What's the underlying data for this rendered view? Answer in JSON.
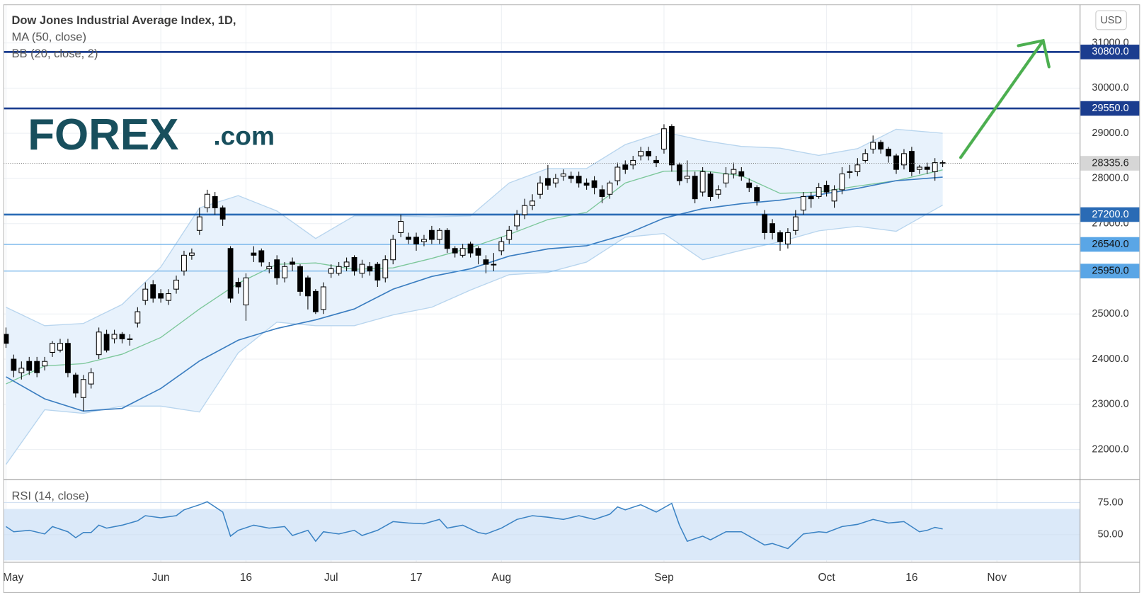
{
  "chart_data": [
    {
      "type": "candlestick",
      "title": "Dow Jones Industrial Average Index, 1D,",
      "indicators": [
        "MA (50, close)",
        "BB (20, close, 2)"
      ],
      "currency": "USD",
      "open": [
        24550,
        24000,
        23700,
        23950,
        23950,
        23850,
        24150,
        24200,
        24350,
        23650,
        23150,
        23450,
        24100,
        24550,
        24450,
        24550,
        24450,
        24800,
        25300,
        25650,
        25450,
        25300,
        25550,
        25950,
        26300,
        26850,
        27350,
        27600,
        27350,
        26450,
        25700,
        25200,
        26350,
        26400,
        26000,
        26200,
        25800,
        26150,
        26050,
        25800,
        25500,
        25100,
        25900,
        25900,
        26050,
        26250,
        25900,
        26050,
        26100,
        25800,
        26200,
        26800,
        26700,
        26700,
        26600,
        26850,
        26650,
        26850,
        26450,
        26300,
        26550,
        26450,
        26200,
        26100,
        26400,
        26650,
        26950,
        27200,
        27400,
        27650,
        28000,
        27900,
        28050,
        28050,
        28050,
        27900,
        27950,
        27750,
        27650,
        27950,
        28300,
        28300,
        28500,
        28600,
        28400,
        28650,
        29150,
        28300,
        28000,
        28050,
        27700,
        28100,
        27650,
        27900,
        28100,
        28150,
        27900,
        27800,
        27200,
        27000,
        26800,
        26550,
        26850,
        27300,
        27600,
        27600,
        27850,
        27500,
        27750,
        28150,
        28150,
        28400,
        28650,
        28800,
        28650,
        28500,
        28300,
        28600,
        28200,
        28250,
        28150,
        28350
      ],
      "high": [
        24700,
        24100,
        23950,
        24050,
        24050,
        24050,
        24400,
        24450,
        24450,
        23700,
        23650,
        23800,
        24700,
        24650,
        24650,
        24600,
        24550,
        25150,
        25700,
        25750,
        25550,
        25550,
        25850,
        26400,
        26450,
        27350,
        27750,
        27700,
        27400,
        26500,
        25800,
        25900,
        26500,
        26450,
        26150,
        26300,
        26150,
        26250,
        26100,
        25850,
        25550,
        25700,
        26100,
        26150,
        26250,
        26300,
        26200,
        26150,
        26150,
        26300,
        26750,
        27200,
        26800,
        26800,
        26750,
        26950,
        26900,
        26900,
        26500,
        26550,
        26600,
        26500,
        26300,
        26350,
        26700,
        26950,
        27300,
        27550,
        27650,
        28050,
        28300,
        28100,
        28200,
        28150,
        28150,
        28000,
        28050,
        27850,
        27950,
        28350,
        28400,
        28500,
        28700,
        28700,
        28500,
        29200,
        29200,
        28350,
        28400,
        28150,
        28250,
        28150,
        27850,
        28250,
        28350,
        28250,
        28000,
        27850,
        27300,
        27100,
        26850,
        26900,
        27300,
        27700,
        27700,
        27900,
        27950,
        27850,
        28250,
        28300,
        28450,
        28650,
        28950,
        28850,
        28700,
        28550,
        28650,
        28700,
        28300,
        28350,
        28450,
        28400
      ],
      "low": [
        24250,
        23600,
        23550,
        23650,
        23600,
        23750,
        24050,
        24150,
        23600,
        23150,
        22850,
        23350,
        24000,
        24150,
        24350,
        24350,
        24300,
        24700,
        25200,
        25250,
        25250,
        25200,
        25450,
        25850,
        26200,
        26750,
        27250,
        27200,
        26950,
        25250,
        25450,
        24850,
        26150,
        26050,
        25900,
        25650,
        25700,
        25950,
        25400,
        25100,
        25000,
        25000,
        25800,
        25850,
        25950,
        25850,
        25800,
        25850,
        25600,
        25700,
        26100,
        26700,
        26550,
        26400,
        26500,
        26550,
        26550,
        26350,
        26250,
        26250,
        26250,
        26100,
        25900,
        25950,
        26300,
        26550,
        26850,
        27100,
        27300,
        27550,
        27750,
        27800,
        27950,
        27900,
        27800,
        27750,
        27650,
        27450,
        27550,
        27850,
        28100,
        28200,
        28400,
        28400,
        28250,
        28550,
        28150,
        27850,
        27900,
        27450,
        27600,
        27500,
        27550,
        27800,
        28000,
        27950,
        27700,
        27400,
        26650,
        26650,
        26400,
        26450,
        26750,
        27200,
        27350,
        27550,
        27600,
        27350,
        27650,
        28000,
        28050,
        28350,
        28550,
        28550,
        28350,
        28100,
        28200,
        28050,
        28100,
        28100,
        27950,
        28250
      ],
      "close": [
        24350,
        23750,
        23800,
        23750,
        23700,
        23950,
        24350,
        24350,
        23700,
        23250,
        23550,
        23700,
        24600,
        24200,
        24550,
        24450,
        24450,
        25050,
        25550,
        25350,
        25350,
        25450,
        25750,
        26300,
        26350,
        27150,
        27650,
        27350,
        27100,
        25350,
        25600,
        25800,
        26300,
        26150,
        26050,
        25800,
        26050,
        26100,
        25500,
        25400,
        25050,
        25600,
        26000,
        26050,
        26150,
        25950,
        26100,
        25950,
        25750,
        26200,
        26650,
        27050,
        26650,
        26550,
        26650,
        26650,
        26850,
        26450,
        26350,
        26450,
        26350,
        26300,
        26100,
        26100,
        26600,
        26850,
        27200,
        27400,
        27500,
        27900,
        27850,
        28000,
        28100,
        28000,
        27900,
        27850,
        27800,
        27600,
        27900,
        28250,
        28200,
        28400,
        28600,
        28500,
        28350,
        29100,
        28300,
        27950,
        28050,
        27550,
        28150,
        27600,
        27750,
        28100,
        28200,
        28050,
        27800,
        27500,
        26800,
        26800,
        26600,
        26800,
        27150,
        27600,
        27550,
        27800,
        27700,
        27750,
        28100,
        28150,
        28300,
        28550,
        28800,
        28650,
        28500,
        28200,
        28550,
        28150,
        28250,
        28200,
        28350,
        28335.6
      ],
      "up_color": "#ffffff",
      "down_color": "#000000",
      "xlim": [
        -0.3,
        138.7
      ],
      "xticks": [
        {
          "value": 0,
          "label": "May"
        },
        {
          "value": 20,
          "label": "Jun"
        },
        {
          "value": 31,
          "label": "16"
        },
        {
          "value": 42,
          "label": "Jul"
        },
        {
          "value": 53,
          "label": "17"
        },
        {
          "value": 64,
          "label": "Aug"
        },
        {
          "value": 85,
          "label": "Sep"
        },
        {
          "value": 106,
          "label": "Oct"
        },
        {
          "value": 117,
          "label": "16"
        },
        {
          "value": 128,
          "label": "Nov"
        }
      ],
      "ylim": [
        21344,
        31845
      ],
      "yticks": [
        {
          "value": 22000,
          "label": "22000.0"
        },
        {
          "value": 23000,
          "label": "23000.0"
        },
        {
          "value": 24000,
          "label": "24000.0"
        },
        {
          "value": 25000,
          "label": "25000.0"
        },
        {
          "value": 27000,
          "label": "27000.0"
        },
        {
          "value": 28000,
          "label": "28000.0"
        },
        {
          "value": 29000,
          "label": "29000.0"
        },
        {
          "value": 30000,
          "label": "30000.0"
        },
        {
          "value": 31000,
          "label": "31000.0"
        }
      ],
      "grid": true,
      "ma": {
        "color": "#3a7dc0",
        "x": [
          0,
          5,
          10,
          15,
          20,
          25,
          30,
          35,
          40,
          45,
          50,
          55,
          60,
          65,
          70,
          75,
          80,
          85,
          90,
          95,
          100,
          105,
          110,
          115,
          121
        ],
        "values": [
          23610,
          23120,
          22850,
          22910,
          23350,
          23960,
          24420,
          24680,
          24870,
          25110,
          25550,
          25830,
          26000,
          26280,
          26440,
          26510,
          26760,
          27120,
          27330,
          27440,
          27520,
          27640,
          27780,
          27950,
          28030
        ]
      },
      "bb": {
        "basis_color": "#7cc79a",
        "band_color": "#b8d5ee",
        "fill": "#e8f2fc",
        "x": [
          0,
          5,
          10,
          15,
          20,
          25,
          30,
          35,
          40,
          45,
          50,
          55,
          60,
          65,
          70,
          75,
          80,
          85,
          90,
          95,
          100,
          105,
          110,
          115,
          121
        ],
        "upper": [
          25150,
          24740,
          24790,
          25210,
          26040,
          27350,
          27620,
          27280,
          26670,
          27170,
          27170,
          27150,
          27170,
          27900,
          28220,
          28220,
          28750,
          29030,
          28840,
          28710,
          28670,
          28510,
          28660,
          29090,
          29000
        ],
        "basis": [
          23450,
          23850,
          23900,
          24110,
          24480,
          25110,
          25680,
          26100,
          26130,
          25990,
          26020,
          26230,
          26470,
          26760,
          27090,
          27250,
          27900,
          28160,
          28170,
          28060,
          27670,
          27700,
          27830,
          27950,
          28190
        ],
        "lower": [
          21670,
          22880,
          22800,
          22960,
          22960,
          22830,
          24140,
          24820,
          24740,
          24740,
          24980,
          25150,
          25530,
          25870,
          25920,
          26150,
          26700,
          26780,
          26200,
          26410,
          26600,
          26840,
          26940,
          26830,
          27410
        ]
      },
      "levels": [
        {
          "value": 30800,
          "label": "30800.0",
          "color": "#1b3d8f",
          "text_color": "#ffffff",
          "weight": "heavy"
        },
        {
          "value": 29550,
          "label": "29550.0",
          "color": "#1b3d8f",
          "text_color": "#ffffff",
          "weight": "heavy"
        },
        {
          "value": 27200,
          "label": "27200.0",
          "color": "#2a6bb5",
          "text_color": "#ffffff",
          "weight": "heavy"
        },
        {
          "value": 26540,
          "label": "26540.0",
          "color": "#5aa6e6",
          "text_color": "#111111",
          "weight": "light"
        },
        {
          "value": 25950,
          "label": "25950.0",
          "color": "#5aa6e6",
          "text_color": "#111111",
          "weight": "light"
        }
      ],
      "last_price": 28335.6,
      "last_price_color": "#d6d6d6",
      "logo": {
        "brand": "FOREX",
        "suffix": ".com",
        "color": "#184f5d"
      }
    },
    {
      "type": "line",
      "title": "RSI (14, close)",
      "color": "#3b83c4",
      "xlim": [
        -0.3,
        138.7
      ],
      "ylim": [
        29,
        92.6
      ],
      "yticks": [
        {
          "value": 75,
          "label": "75.00"
        },
        {
          "value": 50,
          "label": "50.00"
        }
      ],
      "band": [
        30,
        70
      ],
      "band_color": "#dbe9f9",
      "x": [
        0,
        1,
        3,
        5,
        6,
        8,
        9,
        10,
        11,
        12,
        13,
        15,
        17,
        18,
        20,
        22,
        23,
        25,
        26,
        28,
        29,
        30,
        32,
        34,
        36,
        37,
        39,
        40,
        41,
        43,
        45,
        46,
        48,
        50,
        52,
        54,
        56,
        57,
        59,
        61,
        62,
        64,
        66,
        68,
        70,
        72,
        74,
        76,
        78,
        79,
        80,
        82,
        84,
        86,
        87,
        88,
        90,
        91,
        93,
        95,
        96,
        98,
        99,
        101,
        102,
        103,
        105,
        106,
        108,
        110,
        112,
        114,
        116,
        118,
        119,
        120,
        121
      ],
      "values": [
        56.3,
        52.3,
        53.4,
        50.6,
        56.3,
        52.3,
        47.7,
        51.7,
        51.7,
        57.4,
        55.1,
        57.4,
        60.8,
        64.8,
        63.1,
        64.8,
        69.3,
        73.3,
        75.6,
        67.6,
        48.9,
        53.4,
        57.4,
        55.1,
        56.3,
        49.4,
        53.4,
        44.9,
        52.3,
        50.6,
        53.4,
        49.4,
        53.4,
        60.2,
        59.1,
        58.5,
        61.9,
        55.1,
        57.4,
        51.7,
        50.6,
        55.1,
        61.9,
        64.8,
        63.6,
        61.9,
        64.8,
        61.9,
        65.9,
        71.6,
        69.3,
        73.3,
        67.6,
        74.4,
        57.4,
        44.9,
        48.9,
        46.0,
        52.3,
        52.3,
        48.9,
        42.0,
        43.2,
        39.2,
        44.9,
        50.6,
        52.3,
        51.7,
        56.3,
        58.0,
        61.9,
        59.1,
        60.2,
        52.3,
        53.4,
        55.7,
        54.5
      ]
    }
  ]
}
